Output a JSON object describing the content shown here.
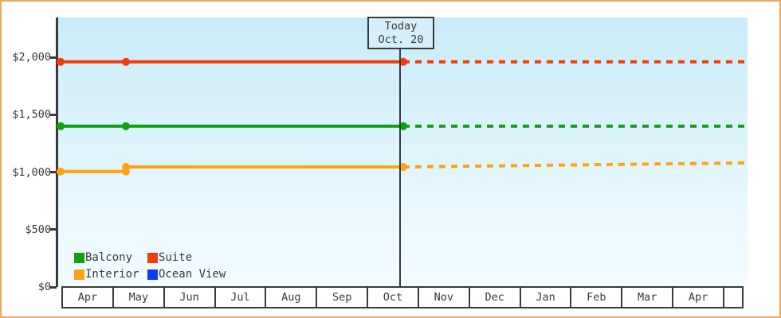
{
  "window": {
    "border_color": "#edaa5f",
    "axis_color": "#3a3a3a",
    "plot_bg_top": "#c9ecfa",
    "plot_bg_bottom": "#f3fcff"
  },
  "today_flag": {
    "title": "Today",
    "date": "Oct. 20",
    "box_bg": "#d5effb"
  },
  "chart_data": {
    "type": "line",
    "title": "",
    "xlabel": "",
    "ylabel": "",
    "x_axis": {
      "unit": "months",
      "labels": [
        "Apr",
        "May",
        "Jun",
        "Jul",
        "Aug",
        "Sep",
        "Oct",
        "Nov",
        "Dec",
        "Jan",
        "Feb",
        "Mar",
        "Apr"
      ],
      "today_x": 6.66,
      "x_max": 13.35
    },
    "y_axis": {
      "min": 0,
      "max": 2345,
      "ticks": [
        {
          "label": "$0",
          "value": 0
        },
        {
          "label": "$500",
          "value": 500
        },
        {
          "label": "$1,000",
          "value": 1000
        },
        {
          "label": "$1,500",
          "value": 1500
        },
        {
          "label": "$2,000",
          "value": 2000
        }
      ]
    },
    "legend_position": "bottom-left-inside",
    "grid": false,
    "series": [
      {
        "name": "Balcony",
        "color": "#10a010",
        "history": [
          [
            0,
            1400
          ],
          [
            1.27,
            1400
          ],
          [
            6.66,
            1400
          ]
        ],
        "forecast": [
          [
            6.66,
            1400
          ],
          [
            13.35,
            1400
          ]
        ]
      },
      {
        "name": "Suite",
        "color": "#f43b0c",
        "history": [
          [
            0,
            1960
          ],
          [
            1.27,
            1960
          ],
          [
            6.66,
            1960
          ]
        ],
        "forecast": [
          [
            6.66,
            1960
          ],
          [
            13.35,
            1960
          ]
        ]
      },
      {
        "name": "Interior",
        "color": "#fba414",
        "history": [
          [
            0,
            1005
          ],
          [
            1.27,
            1005
          ],
          [
            1.27,
            1045
          ],
          [
            6.66,
            1045
          ]
        ],
        "forecast": [
          [
            6.66,
            1045
          ],
          [
            13.35,
            1080
          ]
        ]
      },
      {
        "name": "Ocean View",
        "color": "#0a3bff",
        "history": [],
        "forecast": []
      }
    ]
  }
}
